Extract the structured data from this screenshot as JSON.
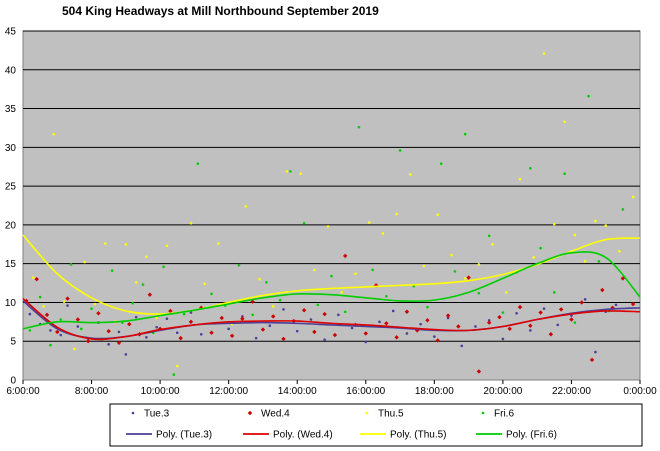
{
  "chart_data": {
    "type": "scatter",
    "title": "504 King Headways at Mill Northbound September 2019",
    "xlabel": "",
    "ylabel": "",
    "xlim": [
      6,
      24
    ],
    "ylim": [
      0,
      45
    ],
    "x_ticks": [
      "6:00:00",
      "8:00:00",
      "10:00:00",
      "12:00:00",
      "14:00:00",
      "16:00:00",
      "18:00:00",
      "20:00:00",
      "22:00:00",
      "0:00:00"
    ],
    "y_ticks": [
      0,
      5,
      10,
      15,
      20,
      25,
      30,
      35,
      40,
      45
    ],
    "grid": "horizontal",
    "plot_background": "#C0C0C0",
    "legend_position": "bottom",
    "series": [
      {
        "name": "Tue.3",
        "marker": "dot",
        "color": "#4B3F9A",
        "points": [
          [
            6.2,
            8.5
          ],
          [
            6.5,
            7.2
          ],
          [
            6.8,
            6.4
          ],
          [
            7.1,
            5.8
          ],
          [
            7.3,
            9.6
          ],
          [
            7.6,
            6.9
          ],
          [
            7.9,
            5.1
          ],
          [
            8.2,
            7.4
          ],
          [
            8.5,
            4.6
          ],
          [
            8.8,
            6.2
          ],
          [
            9.0,
            3.3
          ],
          [
            9.3,
            8.1
          ],
          [
            9.6,
            5.5
          ],
          [
            9.9,
            6.8
          ],
          [
            10.2,
            7.9
          ],
          [
            10.5,
            6.1
          ],
          [
            10.9,
            8.7
          ],
          [
            11.2,
            5.9
          ],
          [
            11.6,
            7.3
          ],
          [
            12.0,
            6.6
          ],
          [
            12.4,
            8.2
          ],
          [
            12.8,
            5.4
          ],
          [
            13.2,
            7.0
          ],
          [
            13.6,
            9.1
          ],
          [
            14.0,
            6.3
          ],
          [
            14.4,
            7.8
          ],
          [
            14.8,
            5.2
          ],
          [
            15.2,
            8.4
          ],
          [
            15.6,
            6.7
          ],
          [
            16.0,
            4.9
          ],
          [
            16.4,
            7.5
          ],
          [
            16.8,
            8.9
          ],
          [
            17.2,
            6.0
          ],
          [
            17.6,
            7.2
          ],
          [
            18.0,
            5.6
          ],
          [
            18.4,
            8.0
          ],
          [
            18.8,
            4.4
          ],
          [
            19.2,
            6.9
          ],
          [
            19.6,
            7.7
          ],
          [
            20.0,
            5.3
          ],
          [
            20.4,
            8.6
          ],
          [
            20.8,
            6.4
          ],
          [
            21.2,
            9.2
          ],
          [
            21.6,
            7.1
          ],
          [
            22.0,
            8.3
          ],
          [
            22.4,
            10.4
          ],
          [
            22.7,
            3.6
          ],
          [
            23.0,
            8.8
          ],
          [
            23.3,
            9.7
          ]
        ]
      },
      {
        "name": "Wed.4",
        "marker": "diamond",
        "color": "#CC0000",
        "points": [
          [
            6.1,
            10.2
          ],
          [
            6.4,
            13.0
          ],
          [
            6.7,
            8.4
          ],
          [
            7.0,
            6.2
          ],
          [
            7.3,
            10.5
          ],
          [
            7.6,
            7.8
          ],
          [
            7.9,
            5.0
          ],
          [
            8.2,
            8.6
          ],
          [
            8.5,
            6.3
          ],
          [
            8.8,
            4.8
          ],
          [
            9.1,
            7.2
          ],
          [
            9.4,
            5.9
          ],
          [
            9.7,
            11.0
          ],
          [
            10.0,
            6.6
          ],
          [
            10.3,
            8.9
          ],
          [
            10.6,
            5.4
          ],
          [
            10.9,
            7.5
          ],
          [
            11.2,
            9.3
          ],
          [
            11.5,
            6.1
          ],
          [
            11.8,
            8.0
          ],
          [
            12.1,
            5.7
          ],
          [
            12.4,
            7.9
          ],
          [
            12.7,
            10.1
          ],
          [
            13.0,
            6.5
          ],
          [
            13.3,
            8.2
          ],
          [
            13.6,
            5.3
          ],
          [
            13.9,
            7.6
          ],
          [
            14.2,
            9.0
          ],
          [
            14.5,
            6.2
          ],
          [
            14.8,
            8.5
          ],
          [
            15.1,
            5.8
          ],
          [
            15.4,
            16.0
          ],
          [
            15.7,
            7.1
          ],
          [
            16.0,
            6.0
          ],
          [
            16.3,
            12.2
          ],
          [
            16.6,
            7.3
          ],
          [
            16.9,
            5.5
          ],
          [
            17.2,
            8.8
          ],
          [
            17.5,
            6.4
          ],
          [
            17.8,
            7.7
          ],
          [
            18.1,
            5.1
          ],
          [
            18.4,
            8.3
          ],
          [
            18.7,
            6.9
          ],
          [
            19.0,
            13.2
          ],
          [
            19.3,
            1.1
          ],
          [
            19.6,
            7.4
          ],
          [
            19.9,
            8.1
          ],
          [
            20.2,
            6.6
          ],
          [
            20.5,
            9.4
          ],
          [
            20.8,
            7.0
          ],
          [
            21.1,
            8.7
          ],
          [
            21.4,
            5.9
          ],
          [
            21.7,
            9.1
          ],
          [
            22.0,
            7.8
          ],
          [
            22.3,
            10.0
          ],
          [
            22.6,
            2.6
          ],
          [
            22.9,
            11.6
          ],
          [
            23.2,
            9.3
          ],
          [
            23.5,
            13.1
          ],
          [
            23.8,
            9.8
          ]
        ]
      },
      {
        "name": "Thu.5",
        "marker": "dot",
        "color": "#FFFF00",
        "points": [
          [
            6.3,
            13.2
          ],
          [
            6.6,
            9.5
          ],
          [
            6.9,
            31.7
          ],
          [
            7.2,
            10.1
          ],
          [
            7.5,
            4.0
          ],
          [
            7.8,
            15.2
          ],
          [
            8.1,
            9.8
          ],
          [
            8.4,
            17.6
          ],
          [
            8.7,
            7.5
          ],
          [
            9.0,
            17.5
          ],
          [
            9.3,
            12.6
          ],
          [
            9.6,
            15.9
          ],
          [
            9.9,
            8.0
          ],
          [
            10.2,
            17.3
          ],
          [
            10.5,
            1.8
          ],
          [
            10.9,
            20.2
          ],
          [
            11.3,
            12.4
          ],
          [
            11.7,
            17.6
          ],
          [
            12.1,
            7.2
          ],
          [
            12.5,
            22.4
          ],
          [
            12.9,
            13.0
          ],
          [
            13.3,
            9.5
          ],
          [
            13.7,
            26.9
          ],
          [
            14.1,
            26.6
          ],
          [
            14.5,
            14.2
          ],
          [
            14.9,
            19.8
          ],
          [
            15.3,
            11.3
          ],
          [
            15.7,
            13.7
          ],
          [
            16.1,
            20.3
          ],
          [
            16.5,
            18.9
          ],
          [
            16.9,
            21.4
          ],
          [
            17.3,
            26.5
          ],
          [
            17.7,
            14.7
          ],
          [
            18.1,
            21.3
          ],
          [
            18.5,
            16.1
          ],
          [
            18.9,
            13.1
          ],
          [
            19.3,
            14.9
          ],
          [
            19.7,
            17.5
          ],
          [
            20.1,
            11.3
          ],
          [
            20.5,
            25.9
          ],
          [
            20.9,
            15.8
          ],
          [
            21.2,
            42.1
          ],
          [
            21.5,
            20.1
          ],
          [
            21.8,
            33.3
          ],
          [
            22.1,
            18.7
          ],
          [
            22.4,
            15.3
          ],
          [
            22.7,
            20.5
          ],
          [
            23.0,
            19.9
          ],
          [
            23.4,
            16.6
          ],
          [
            23.8,
            23.6
          ]
        ]
      },
      {
        "name": "Fri.6",
        "marker": "dot",
        "color": "#00CC00",
        "points": [
          [
            6.2,
            6.4
          ],
          [
            6.5,
            10.7
          ],
          [
            6.8,
            4.5
          ],
          [
            7.1,
            7.8
          ],
          [
            7.4,
            14.9
          ],
          [
            7.7,
            6.6
          ],
          [
            8.0,
            9.2
          ],
          [
            8.3,
            5.3
          ],
          [
            8.6,
            14.1
          ],
          [
            8.9,
            7.4
          ],
          [
            9.2,
            9.9
          ],
          [
            9.5,
            12.3
          ],
          [
            9.8,
            6.1
          ],
          [
            10.1,
            14.6
          ],
          [
            10.4,
            0.7
          ],
          [
            10.7,
            8.5
          ],
          [
            11.1,
            27.9
          ],
          [
            11.5,
            11.1
          ],
          [
            11.9,
            9.6
          ],
          [
            12.3,
            14.8
          ],
          [
            12.7,
            8.4
          ],
          [
            13.1,
            12.6
          ],
          [
            13.5,
            10.3
          ],
          [
            13.8,
            26.9
          ],
          [
            14.2,
            20.2
          ],
          [
            14.6,
            9.7
          ],
          [
            15.0,
            13.4
          ],
          [
            15.4,
            8.8
          ],
          [
            15.8,
            32.6
          ],
          [
            16.2,
            14.2
          ],
          [
            16.6,
            10.8
          ],
          [
            17.0,
            29.6
          ],
          [
            17.4,
            12.1
          ],
          [
            17.8,
            9.4
          ],
          [
            18.2,
            27.9
          ],
          [
            18.6,
            14.0
          ],
          [
            18.9,
            31.7
          ],
          [
            19.3,
            11.2
          ],
          [
            19.6,
            18.6
          ],
          [
            20.0,
            8.7
          ],
          [
            20.4,
            13.9
          ],
          [
            20.8,
            27.3
          ],
          [
            21.1,
            17.0
          ],
          [
            21.5,
            11.3
          ],
          [
            21.8,
            26.6
          ],
          [
            22.1,
            7.4
          ],
          [
            22.5,
            36.6
          ],
          [
            22.8,
            15.3
          ],
          [
            23.1,
            8.9
          ],
          [
            23.5,
            22.0
          ]
        ]
      }
    ],
    "trendlines": [
      {
        "name": "Poly. (Tue.3)",
        "color": "#4B3F9A",
        "points": [
          [
            6.0,
            10.2
          ],
          [
            7.0,
            6.6
          ],
          [
            8.0,
            5.4
          ],
          [
            9.0,
            5.6
          ],
          [
            10.0,
            6.4
          ],
          [
            11.0,
            7.1
          ],
          [
            12.0,
            7.3
          ],
          [
            13.0,
            7.4
          ],
          [
            14.0,
            7.3
          ],
          [
            15.0,
            7.1
          ],
          [
            16.0,
            6.9
          ],
          [
            17.0,
            6.7
          ],
          [
            18.0,
            6.4
          ],
          [
            19.0,
            6.4
          ],
          [
            20.0,
            6.9
          ],
          [
            21.0,
            7.8
          ],
          [
            22.0,
            8.6
          ],
          [
            23.0,
            9.1
          ],
          [
            24.0,
            9.3
          ]
        ]
      },
      {
        "name": "Poly. (Wed.4)",
        "color": "#DD0000",
        "points": [
          [
            6.0,
            10.5
          ],
          [
            7.0,
            6.8
          ],
          [
            8.0,
            5.3
          ],
          [
            9.0,
            5.6
          ],
          [
            10.0,
            6.5
          ],
          [
            11.0,
            7.1
          ],
          [
            12.0,
            7.5
          ],
          [
            13.0,
            7.6
          ],
          [
            14.0,
            7.6
          ],
          [
            15.0,
            7.3
          ],
          [
            16.0,
            7.1
          ],
          [
            17.0,
            6.8
          ],
          [
            18.0,
            6.5
          ],
          [
            19.0,
            6.4
          ],
          [
            20.0,
            6.9
          ],
          [
            21.0,
            7.8
          ],
          [
            22.0,
            8.5
          ],
          [
            23.0,
            8.9
          ],
          [
            24.0,
            8.8
          ]
        ]
      },
      {
        "name": "Poly. (Thu.5)",
        "color": "#FFFF00",
        "points": [
          [
            6.0,
            18.7
          ],
          [
            7.0,
            13.7
          ],
          [
            8.0,
            10.6
          ],
          [
            9.0,
            8.9
          ],
          [
            10.0,
            8.5
          ],
          [
            11.0,
            9.0
          ],
          [
            12.0,
            10.0
          ],
          [
            13.0,
            10.9
          ],
          [
            14.0,
            11.5
          ],
          [
            15.0,
            11.8
          ],
          [
            16.0,
            12.0
          ],
          [
            17.0,
            12.2
          ],
          [
            18.0,
            12.4
          ],
          [
            19.0,
            12.8
          ],
          [
            20.0,
            13.6
          ],
          [
            21.0,
            14.9
          ],
          [
            22.0,
            16.6
          ],
          [
            23.0,
            18.1
          ],
          [
            24.0,
            18.3
          ]
        ]
      },
      {
        "name": "Poly. (Fri.6)",
        "color": "#00CC00",
        "points": [
          [
            6.0,
            6.6
          ],
          [
            7.0,
            7.5
          ],
          [
            8.0,
            7.4
          ],
          [
            9.0,
            7.6
          ],
          [
            10.0,
            8.3
          ],
          [
            11.0,
            9.0
          ],
          [
            12.0,
            9.8
          ],
          [
            13.0,
            10.6
          ],
          [
            14.0,
            11.1
          ],
          [
            15.0,
            11.0
          ],
          [
            16.0,
            10.6
          ],
          [
            17.0,
            10.2
          ],
          [
            18.0,
            10.3
          ],
          [
            19.0,
            11.3
          ],
          [
            20.0,
            13.1
          ],
          [
            21.0,
            15.0
          ],
          [
            22.0,
            16.4
          ],
          [
            23.0,
            15.8
          ],
          [
            24.0,
            10.7
          ]
        ]
      }
    ]
  }
}
